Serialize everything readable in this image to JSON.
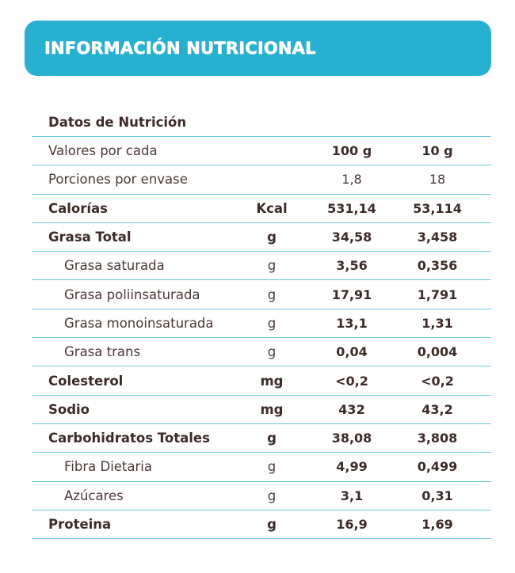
{
  "title": "INFORMACIÓN NUTRICIONAL",
  "section_title": "Datos de Nutrición",
  "rows": [
    {
      "name": "Valores por cada",
      "unit": "",
      "v1": "100 g",
      "v2": "10 g",
      "name_bold": false,
      "values_bold": true,
      "indent": false
    },
    {
      "name": "Porciones por envase",
      "unit": "",
      "v1": "1,8",
      "v2": "18",
      "name_bold": false,
      "values_bold": false,
      "indent": false
    },
    {
      "name": "Calorías",
      "unit": "Kcal",
      "v1": "531,14",
      "v2": "53,114",
      "name_bold": true,
      "values_bold": true,
      "indent": false
    },
    {
      "name": "Grasa Total",
      "unit": "g",
      "v1": "34,58",
      "v2": "3,458",
      "name_bold": true,
      "values_bold": true,
      "indent": false
    },
    {
      "name": "Grasa saturada",
      "unit": "g",
      "v1": "3,56",
      "v2": "0,356",
      "name_bold": false,
      "values_bold": true,
      "indent": true
    },
    {
      "name": "Grasa poliinsaturada",
      "unit": "g",
      "v1": "17,91",
      "v2": "1,791",
      "name_bold": false,
      "values_bold": true,
      "indent": true
    },
    {
      "name": "Grasa monoinsaturada",
      "unit": "g",
      "v1": "13,1",
      "v2": "1,31",
      "name_bold": false,
      "values_bold": true,
      "indent": true
    },
    {
      "name": "Grasa trans",
      "unit": "g",
      "v1": "0,04",
      "v2": "0,004",
      "name_bold": false,
      "values_bold": true,
      "indent": true
    },
    {
      "name": "Colesterol",
      "unit": "mg",
      "v1": "<0,2",
      "v2": "<0,2",
      "name_bold": true,
      "values_bold": true,
      "indent": false
    },
    {
      "name": "Sodio",
      "unit": "mg",
      "v1": "432",
      "v2": "43,2",
      "name_bold": true,
      "values_bold": true,
      "indent": false
    },
    {
      "name": "Carbohidratos Totales",
      "unit": "g",
      "v1": "38,08",
      "v2": "3,808",
      "name_bold": true,
      "values_bold": true,
      "indent": false
    },
    {
      "name": "Fibra Dietaria",
      "unit": "g",
      "v1": "4,99",
      "v2": "0,499",
      "name_bold": false,
      "values_bold": true,
      "indent": true
    },
    {
      "name": "Azúcares",
      "unit": "g",
      "v1": "3,1",
      "v2": "0,31",
      "name_bold": false,
      "values_bold": true,
      "indent": true
    },
    {
      "name": "Proteina",
      "unit": "g",
      "v1": "16,9",
      "v2": "1,69",
      "name_bold": true,
      "values_bold": true,
      "indent": false
    }
  ],
  "colors": {
    "banner": "#28b0d1",
    "divider": "#6cc7dd",
    "text": "#3d2b28"
  }
}
